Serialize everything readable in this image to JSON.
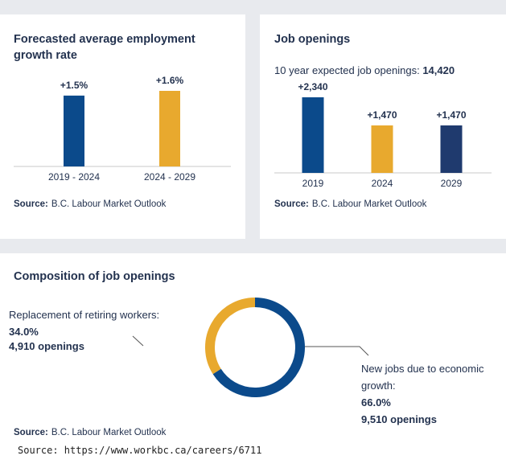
{
  "chart_data": [
    {
      "type": "bar",
      "title": "Forecasted average employment growth rate",
      "categories": [
        "2019 - 2024",
        "2024 - 2029"
      ],
      "values": [
        1.5,
        1.6
      ],
      "value_labels": [
        "+1.5%",
        "+1.6%"
      ],
      "colors": [
        "#0b4a8b",
        "#e8a92e"
      ],
      "source_label": "Source:",
      "source": "B.C. Labour Market Outlook"
    },
    {
      "type": "bar",
      "title": "Job openings",
      "subtitle": "10 year expected job openings:",
      "total": 14420,
      "total_label": "14,420",
      "categories": [
        "2019",
        "2024",
        "2029"
      ],
      "values": [
        2340,
        1470,
        1470
      ],
      "value_labels": [
        "+2,340",
        "+1,470",
        "+1,470"
      ],
      "colors": [
        "#0b4a8b",
        "#e8a92e",
        "#1f3a6e"
      ],
      "source_label": "Source:",
      "source": "B.C. Labour Market Outlook"
    },
    {
      "type": "pie",
      "donut": true,
      "title": "Composition of job openings",
      "categories": [
        "Replacement of retiring workers:",
        "New jobs due to economic growth:"
      ],
      "values": [
        34.0,
        66.0
      ],
      "value_labels": [
        "34.0%",
        "66.0%"
      ],
      "openings": [
        4910,
        9510
      ],
      "openings_labels": [
        "4,910 openings",
        "9,510 openings"
      ],
      "colors": [
        "#e8a92e",
        "#0b4a8b"
      ],
      "source_label": "Source:",
      "source": "B.C. Labour Market Outlook"
    }
  ],
  "footer": "Source: https://www.workbc.ca/careers/6711"
}
